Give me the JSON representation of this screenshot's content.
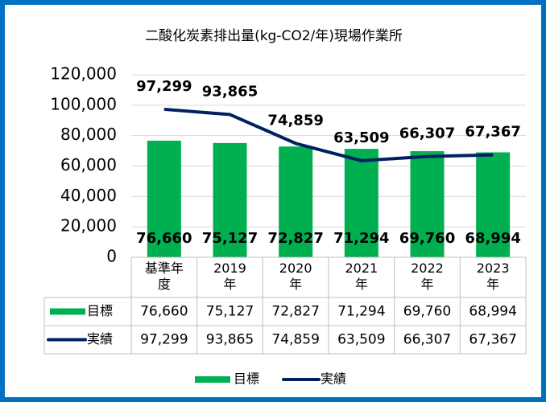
{
  "chart_data": {
    "type": "bar-line",
    "title": "二酸化炭素排出量(kg-CO2/年)現場作業所",
    "categories": [
      "基準年度",
      "2019年",
      "2020年",
      "2021年",
      "2022年",
      "2023年"
    ],
    "series": [
      {
        "name": "目標",
        "type": "bar",
        "color": "#00b050",
        "values": [
          76660,
          75127,
          72827,
          71294,
          69760,
          68994
        ],
        "value_labels": [
          "76,660",
          "75,127",
          "72,827",
          "71,294",
          "69,760",
          "68,994"
        ]
      },
      {
        "name": "実績",
        "type": "line",
        "color": "#002060",
        "values": [
          97299,
          93865,
          74859,
          63509,
          66307,
          67367
        ],
        "value_labels": [
          "97,299",
          "93,865",
          "74,859",
          "63,509",
          "66,307",
          "67,367"
        ]
      }
    ],
    "ylim": [
      0,
      120000
    ],
    "yticks": [
      0,
      {
        "value": 20000,
        "label": "20,000"
      },
      {
        "value": 40000,
        "label": "40,000"
      },
      {
        "value": 60000,
        "label": "60,000"
      },
      {
        "value": 80000,
        "label": "80,000"
      },
      {
        "value": 100000,
        "label": "100,000"
      },
      {
        "value": 120000,
        "label": "120,000"
      }
    ],
    "grid": true,
    "legend": "bottom"
  }
}
